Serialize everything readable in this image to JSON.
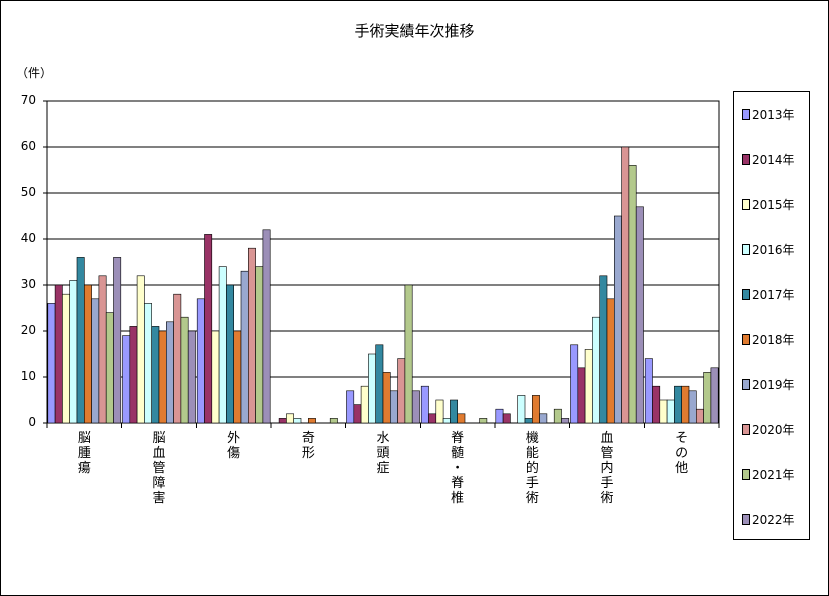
{
  "chart_data": {
    "type": "bar",
    "title": "手術実績年次推移",
    "ylabel": "（件）",
    "xlabel": "",
    "ylim": [
      0,
      70
    ],
    "yticks": [
      0,
      10,
      20,
      30,
      40,
      50,
      60,
      70
    ],
    "grid": true,
    "legend_position": "right",
    "categories": [
      "脳腫瘍",
      "脳血管障害",
      "外傷",
      "奇形",
      "水頭症",
      "脊髄・脊椎",
      "機能的手術",
      "血管内手術",
      "その他"
    ],
    "series": [
      {
        "name": "2013年",
        "color": "#9999FF",
        "values": [
          26,
          19,
          27,
          0,
          7,
          8,
          3,
          17,
          14
        ]
      },
      {
        "name": "2014年",
        "color": "#993366",
        "values": [
          30,
          21,
          41,
          1,
          4,
          2,
          2,
          12,
          8
        ]
      },
      {
        "name": "2015年",
        "color": "#FFFFCC",
        "values": [
          28,
          32,
          20,
          2,
          8,
          5,
          0,
          16,
          5
        ]
      },
      {
        "name": "2016年",
        "color": "#CCFFFF",
        "values": [
          31,
          26,
          34,
          1,
          15,
          1,
          6,
          23,
          5
        ]
      },
      {
        "name": "2017年",
        "color": "#3388A0",
        "values": [
          36,
          21,
          30,
          0,
          17,
          5,
          1,
          32,
          8
        ]
      },
      {
        "name": "2018年",
        "color": "#E07B30",
        "values": [
          30,
          20,
          20,
          1,
          11,
          2,
          6,
          27,
          8
        ]
      },
      {
        "name": "2019年",
        "color": "#99A8CF",
        "values": [
          27,
          22,
          33,
          0,
          7,
          0,
          2,
          45,
          7
        ]
      },
      {
        "name": "2020年",
        "color": "#D99594",
        "values": [
          32,
          28,
          38,
          0,
          14,
          0,
          0,
          60,
          3
        ]
      },
      {
        "name": "2021年",
        "color": "#B3C98C",
        "values": [
          24,
          23,
          34,
          1,
          30,
          1,
          3,
          56,
          11
        ]
      },
      {
        "name": "2022年",
        "color": "#9C8FB8",
        "values": [
          36,
          20,
          42,
          0,
          7,
          0,
          1,
          47,
          12
        ]
      }
    ]
  }
}
